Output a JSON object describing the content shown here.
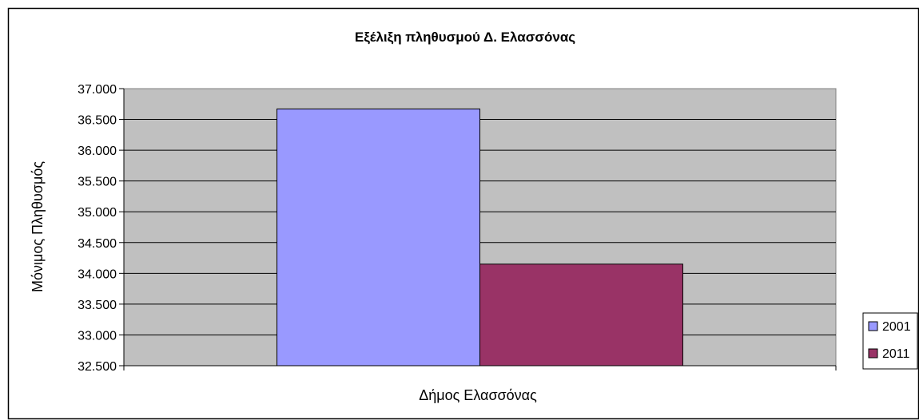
{
  "chart_data": {
    "type": "bar",
    "title": "Εξέλιξη πληθυσμού Δ. Ελασσόνας",
    "xlabel": "Δήμος Ελασσόνας",
    "ylabel": "Μόνιμος Πληθυσμός",
    "categories": [
      "Δήμος Ελασσόνας"
    ],
    "series": [
      {
        "name": "2001",
        "values": [
          36670
        ],
        "color": "#9999ff"
      },
      {
        "name": "2011",
        "values": [
          34150
        ],
        "color": "#993366"
      }
    ],
    "ylim": [
      32500,
      37000
    ],
    "yticks": [
      32500,
      33000,
      33500,
      34000,
      34500,
      35000,
      35500,
      36000,
      36500,
      37000
    ],
    "ytick_labels": [
      "32.500",
      "33.000",
      "33.500",
      "34.000",
      "34.500",
      "35.000",
      "35.500",
      "36.000",
      "36.500",
      "37.000"
    ],
    "grid": true,
    "legend": "right",
    "plot_background": "#c0c0c0"
  }
}
